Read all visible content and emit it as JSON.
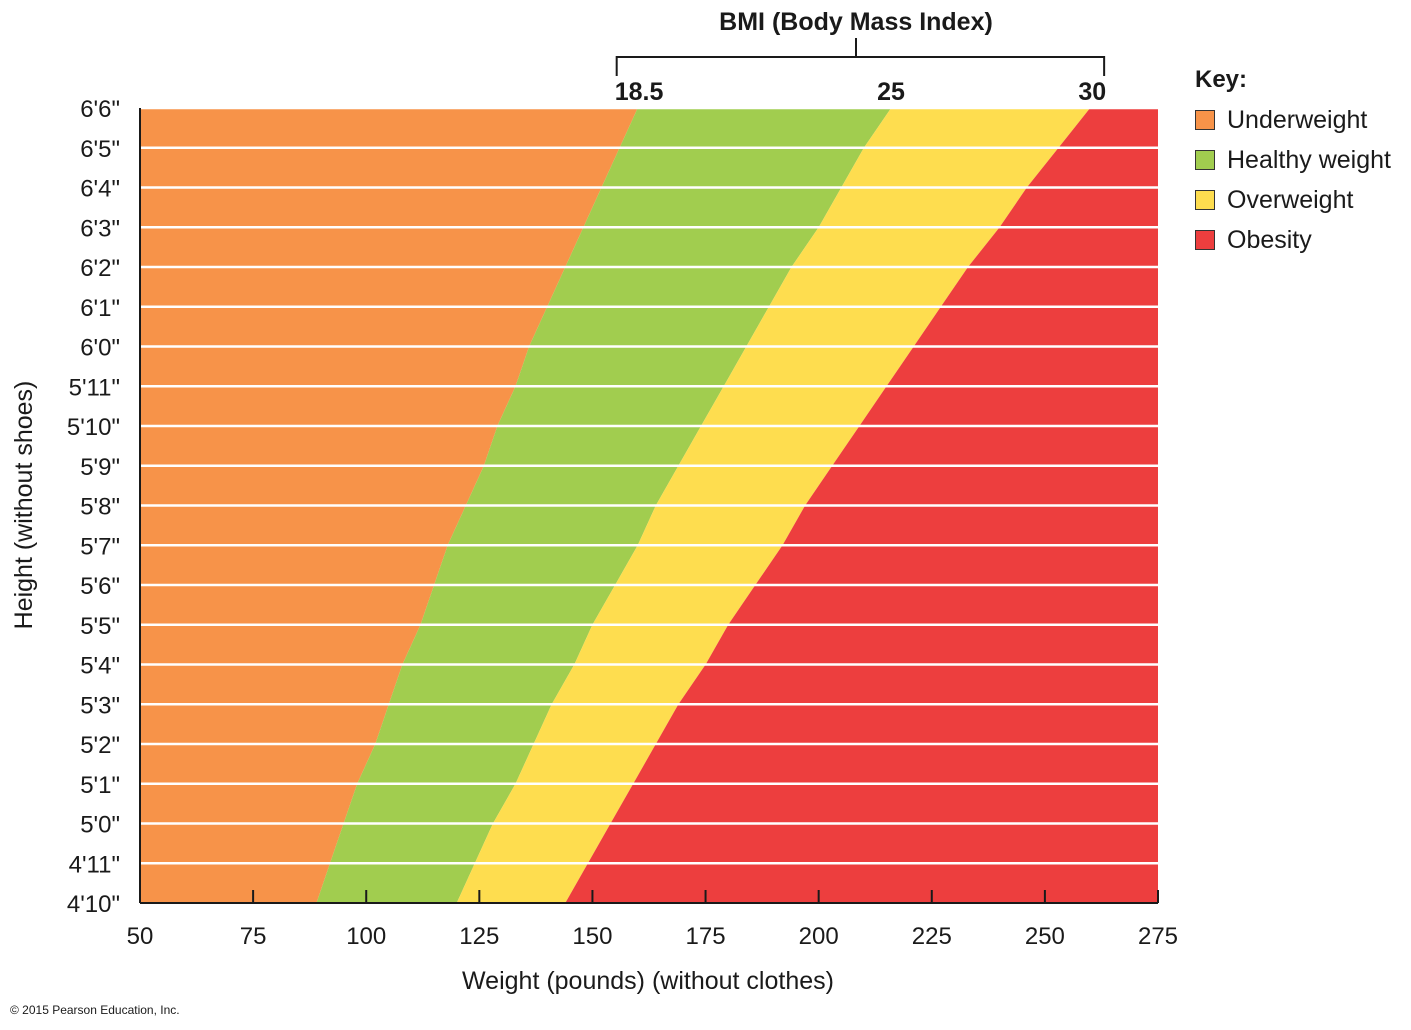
{
  "chart_data": {
    "type": "area",
    "title": "BMI (Body Mass Index)",
    "xlabel": "Weight (pounds) (without clothes)",
    "ylabel": "Height (without shoes)",
    "xlim": [
      50,
      275
    ],
    "x_ticks": [
      "50",
      "75",
      "100",
      "125",
      "150",
      "175",
      "200",
      "225",
      "250",
      "275"
    ],
    "y_categories": [
      "4'10\"",
      "4'11\"",
      "5'0\"",
      "5'1\"",
      "5'2\"",
      "5'3\"",
      "5'4\"",
      "5'5\"",
      "5'6\"",
      "5'7\"",
      "5'8\"",
      "5'9\"",
      "5'10\"",
      "5'11\"",
      "6'0\"",
      "6'1\"",
      "6'2\"",
      "6'3\"",
      "6'4\"",
      "6'5\"",
      "6'6\""
    ],
    "heights_inches": [
      58,
      59,
      60,
      61,
      62,
      63,
      64,
      65,
      66,
      67,
      68,
      69,
      70,
      71,
      72,
      73,
      74,
      75,
      76,
      77,
      78
    ],
    "bmi_thresholds": [
      {
        "label": "18.5",
        "value": 18.5,
        "weights_lb": [
          89,
          92,
          95,
          98,
          102,
          105,
          108,
          112,
          115,
          118,
          122,
          126,
          129,
          133,
          136,
          140,
          144,
          148,
          152,
          156,
          160
        ]
      },
      {
        "label": "25",
        "value": 25,
        "weights_lb": [
          120,
          124,
          128,
          133,
          137,
          141,
          146,
          150,
          155,
          160,
          164,
          169,
          174,
          179,
          184,
          189,
          194,
          200,
          205,
          210,
          216
        ]
      },
      {
        "label": "30",
        "value": 30,
        "weights_lb": [
          144,
          149,
          154,
          159,
          164,
          169,
          175,
          180,
          186,
          192,
          197,
          203,
          209,
          215,
          221,
          227,
          233,
          240,
          246,
          253,
          260
        ]
      }
    ],
    "categories": [
      {
        "name": "Underweight",
        "color": "#f79349"
      },
      {
        "name": "Healthy weight",
        "color": "#a1cd4f"
      },
      {
        "name": "Overweight",
        "color": "#fedd4f"
      },
      {
        "name": "Obesity",
        "color": "#ed3e3e"
      }
    ],
    "grid": true,
    "legend_position": "top-right"
  },
  "legend": {
    "title": "Key:",
    "items": [
      {
        "label": "Underweight",
        "color": "#f79349"
      },
      {
        "label": "Healthy weight",
        "color": "#a1cd4f"
      },
      {
        "label": "Overweight",
        "color": "#fedd4f"
      },
      {
        "label": "Obesity",
        "color": "#ed3e3e"
      }
    ]
  },
  "copyright": "© 2015 Pearson Education, Inc."
}
